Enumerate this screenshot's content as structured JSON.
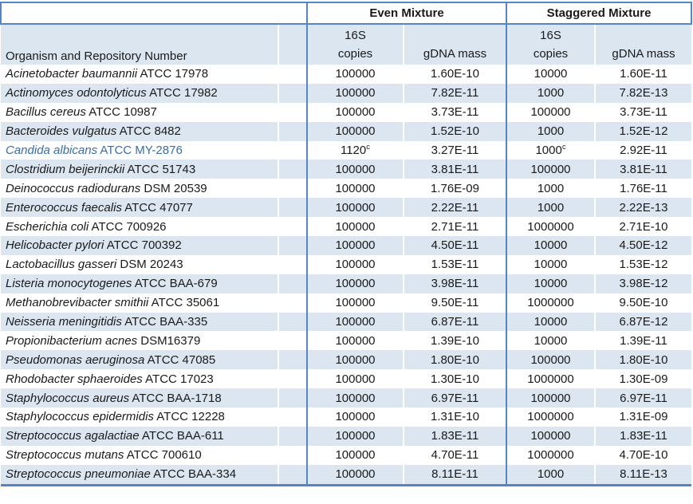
{
  "colors": {
    "border_blue": "#5585c2",
    "row_shade_blue": "#dce6f1",
    "highlight_text_blue": "#3a6ca8"
  },
  "table": {
    "groups": [
      {
        "label": "Even Mixture"
      },
      {
        "label": "Staggered Mixture"
      }
    ],
    "organism_header": "Organism and Repository Number",
    "sub_headers": {
      "copies_line1": "16S",
      "copies_line2": "copies",
      "gdna_mass": "gDNA mass"
    },
    "footnote_marker": "c",
    "rows": [
      {
        "it": "Acinetobacter baumannii",
        "rest": "ATCC 17978",
        "ec": "100000",
        "ecs": "",
        "em": "1.60E-10",
        "sc": "10000",
        "scs": "",
        "sm": "1.60E-11",
        "hl": false
      },
      {
        "it": "Actinomyces odontolyticus",
        "rest": "ATCC 17982",
        "ec": "100000",
        "ecs": "",
        "em": "7.82E-11",
        "sc": "1000",
        "scs": "",
        "sm": "7.82E-13",
        "hl": false
      },
      {
        "it": "Bacillus cereus",
        "rest": "ATCC 10987",
        "ec": "100000",
        "ecs": "",
        "em": "3.73E-11",
        "sc": "100000",
        "scs": "",
        "sm": "3.73E-11",
        "hl": false
      },
      {
        "it": "Bacteroides vulgatus",
        "rest": "ATCC 8482",
        "ec": "100000",
        "ecs": "",
        "em": "1.52E-10",
        "sc": "1000",
        "scs": "",
        "sm": "1.52E-12",
        "hl": false
      },
      {
        "it": "Candida albicans",
        "rest": "ATCC MY-2876",
        "ec": "1120",
        "ecs": "c",
        "em": "3.27E-11",
        "sc": "1000",
        "scs": "c",
        "sm": "2.92E-11",
        "hl": true
      },
      {
        "it": "Clostridium beijerinckii",
        "rest": "ATCC 51743",
        "ec": "100000",
        "ecs": "",
        "em": "3.81E-11",
        "sc": "100000",
        "scs": "",
        "sm": "3.81E-11",
        "hl": false
      },
      {
        "it": "Deinococcus radiodurans",
        "rest": "DSM 20539",
        "ec": "100000",
        "ecs": "",
        "em": "1.76E-09",
        "sc": "1000",
        "scs": "",
        "sm": "1.76E-11",
        "hl": false
      },
      {
        "it": "Enterococcus faecalis",
        "rest": "ATCC 47077",
        "ec": "100000",
        "ecs": "",
        "em": "2.22E-11",
        "sc": "1000",
        "scs": "",
        "sm": "2.22E-13",
        "hl": false
      },
      {
        "it": "Escherichia coli",
        "rest": "ATCC 700926",
        "ec": "100000",
        "ecs": "",
        "em": "2.71E-11",
        "sc": "1000000",
        "scs": "",
        "sm": "2.71E-10",
        "hl": false
      },
      {
        "it": "Helicobacter pylori",
        "rest": "ATCC 700392",
        "ec": "100000",
        "ecs": "",
        "em": "4.50E-11",
        "sc": "10000",
        "scs": "",
        "sm": "4.50E-12",
        "hl": false
      },
      {
        "it": "Lactobacillus gasseri",
        "rest": "DSM 20243",
        "ec": "100000",
        "ecs": "",
        "em": "1.53E-11",
        "sc": "10000",
        "scs": "",
        "sm": "1.53E-12",
        "hl": false
      },
      {
        "it": "Listeria monocytogenes",
        "rest": "ATCC BAA-679",
        "ec": "100000",
        "ecs": "",
        "em": "3.98E-11",
        "sc": "10000",
        "scs": "",
        "sm": "3.98E-12",
        "hl": false
      },
      {
        "it": "Methanobrevibacter smithii",
        "rest": "ATCC 35061",
        "ec": "100000",
        "ecs": "",
        "em": "9.50E-11",
        "sc": "1000000",
        "scs": "",
        "sm": "9.50E-10",
        "hl": false
      },
      {
        "it": "Neisseria meningitidis",
        "rest": "ATCC BAA-335",
        "ec": "100000",
        "ecs": "",
        "em": "6.87E-11",
        "sc": "10000",
        "scs": "",
        "sm": "6.87E-12",
        "hl": false
      },
      {
        "it": "Propionibacterium acnes",
        "rest": "DSM16379",
        "ec": "100000",
        "ecs": "",
        "em": "1.39E-10",
        "sc": "10000",
        "scs": "",
        "sm": "1.39E-11",
        "hl": false
      },
      {
        "it": "Pseudomonas aeruginosa",
        "rest": "ATCC 47085",
        "ec": "100000",
        "ecs": "",
        "em": "1.80E-10",
        "sc": "100000",
        "scs": "",
        "sm": "1.80E-10",
        "hl": false
      },
      {
        "it": "Rhodobacter sphaeroides",
        "rest": "ATCC 17023",
        "ec": "100000",
        "ecs": "",
        "em": "1.30E-10",
        "sc": "1000000",
        "scs": "",
        "sm": "1.30E-09",
        "hl": false
      },
      {
        "it": "Staphylococcus aureus",
        "rest": "ATCC BAA-1718",
        "ec": "100000",
        "ecs": "",
        "em": "6.97E-11",
        "sc": "100000",
        "scs": "",
        "sm": "6.97E-11",
        "hl": false
      },
      {
        "it": "Staphylococcus epidermidis",
        "rest": "ATCC 12228",
        "ec": "100000",
        "ecs": "",
        "em": "1.31E-10",
        "sc": "1000000",
        "scs": "",
        "sm": "1.31E-09",
        "hl": false
      },
      {
        "it": "Streptococcus agalactiae",
        "rest": "ATCC BAA-611",
        "ec": "100000",
        "ecs": "",
        "em": "1.83E-11",
        "sc": "100000",
        "scs": "",
        "sm": "1.83E-11",
        "hl": false
      },
      {
        "it": "Streptococcus mutans",
        "rest": "ATCC 700610",
        "ec": "100000",
        "ecs": "",
        "em": "4.70E-11",
        "sc": "1000000",
        "scs": "",
        "sm": "4.70E-10",
        "hl": false
      },
      {
        "it": "Streptococcus pneumoniae",
        "rest": "ATCC BAA-334",
        "ec": "100000",
        "ecs": "",
        "em": "8.11E-11",
        "sc": "1000",
        "scs": "",
        "sm": "8.11E-13",
        "hl": false
      }
    ]
  }
}
